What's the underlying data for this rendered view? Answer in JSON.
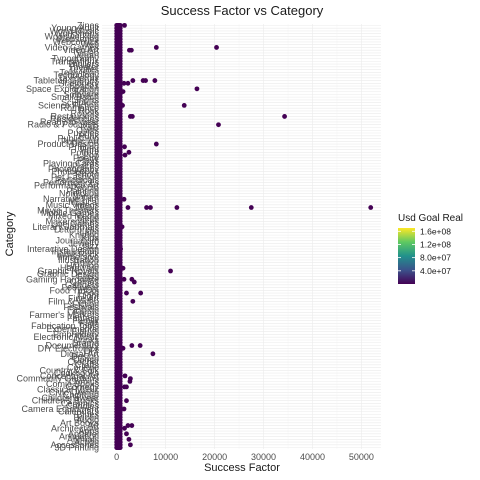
{
  "chart_data": {
    "type": "scatter",
    "title": "Success Factor vs Category",
    "xlabel": "Success Factor",
    "ylabel": "Category",
    "xlim": [
      -3000,
      54000
    ],
    "x_ticks": [
      0,
      10000,
      20000,
      30000,
      40000,
      50000
    ],
    "x_tick_labels": [
      "0",
      "10000",
      "20000",
      "30000",
      "40000",
      "50000"
    ],
    "grid": true,
    "legend_position": "right",
    "color_legend": {
      "title": "Usd Goal Real",
      "breaks": [
        "1.6e+08",
        "1.2e+08",
        "8.0e+07",
        "4.0e+07"
      ],
      "break_values": [
        160000000,
        120000000,
        80000000,
        40000000
      ],
      "range": [
        0,
        170000000
      ],
      "colors": [
        "#440154",
        "#3b528b",
        "#21918c",
        "#5ec962",
        "#fde725"
      ]
    },
    "point_color": "#440154",
    "categories": [
      "3D Printing",
      "Accessories",
      "Action",
      "Animals",
      "Animation",
      "Apparel",
      "Apps",
      "Architecture",
      "Art",
      "Art Books",
      "Audio",
      "Bacon",
      "Blues",
      "Calendars",
      "Camera Equipment",
      "Candles",
      "Ceramics",
      "Children's Books",
      "Childrenswear",
      "Chiptune",
      "Civic Design",
      "Classical Music",
      "Comedy",
      "Comic Books",
      "Comics",
      "Community Gardens",
      "Conceptual Art",
      "Cookbooks",
      "Country & Folk",
      "Couture",
      "Crafts",
      "Crochet",
      "Dance",
      "Design",
      "Digital Art",
      "DIY",
      "DIY Electronics",
      "Documentary",
      "Drama",
      "Drinks",
      "Electronic Music",
      "Embroidery",
      "Events",
      "Experimental",
      "Fabrication Tools",
      "Faith",
      "Family",
      "Fantasy",
      "Farmer's Markets",
      "Farms",
      "Fashion",
      "Festivals",
      "Fiction",
      "Film & Video",
      "Fine Art",
      "Flight",
      "Food",
      "Food Trucks",
      "Footwear",
      "Gadgets",
      "Games",
      "Gaming Hardware",
      "Glass",
      "Graphic Design",
      "Graphic Novels",
      "Hardware",
      "Hip-Hop",
      "Horror",
      "Illustration",
      "Immersive",
      "Indie Rock",
      "Installations",
      "Interactive Design",
      "Jazz",
      "Jewelry",
      "Journalism",
      "Kids",
      "Knitting",
      "Latin",
      "Letterpress",
      "Literary Journals",
      "Live Games",
      "Makerspaces",
      "Metal",
      "Mixed Media",
      "Mobile Games",
      "Movie Theaters",
      "Music",
      "Music Videos",
      "Musical",
      "Narrative Film",
      "Nature",
      "Nonfiction",
      "Painting",
      "People",
      "Performance Art",
      "Performances",
      "Periodicals",
      "Pet Fashion",
      "Photo",
      "Photobooks",
      "Photography",
      "Places",
      "Playing Cards",
      "Plays",
      "Poetry",
      "Pop",
      "Pottery",
      "Print",
      "Printing",
      "Product Design",
      "Public Art",
      "Publishing",
      "Punk",
      "Puzzles",
      "Quilts",
      "R&B",
      "Radio & Podcasts",
      "Ready-to-wear",
      "Residencies",
      "Restaurants",
      "Robots",
      "Rock",
      "Romance",
      "Science Fiction",
      "Sculpture",
      "Shorts",
      "Small Batch",
      "Software",
      "Sound",
      "Space Exploration",
      "Spaces",
      "Stationery",
      "Tabletop Games",
      "Taxidermy",
      "Technology",
      "Television",
      "Textiles",
      "Theater",
      "Thrillers",
      "Translations",
      "Typography",
      "Vegan",
      "Video",
      "Video Art",
      "Video Games",
      "Web",
      "Webcomics",
      "Webseries",
      "Woodworking",
      "Workshops",
      "World Music",
      "Young Adult",
      "Zines"
    ],
    "points": [
      {
        "category": "Zines",
        "x": 1600
      },
      {
        "category": "Video Art",
        "x": 2600
      },
      {
        "category": "Video Art",
        "x": 3000
      },
      {
        "category": "Video Games",
        "x": 8100
      },
      {
        "category": "Video Games",
        "x": 20400
      },
      {
        "category": "Tabletop Games",
        "x": 3300
      },
      {
        "category": "Tabletop Games",
        "x": 5400
      },
      {
        "category": "Tabletop Games",
        "x": 5900
      },
      {
        "category": "Tabletop Games",
        "x": 7800
      },
      {
        "category": "Stationery",
        "x": 1500
      },
      {
        "category": "Stationery",
        "x": 2300
      },
      {
        "category": "Space Exploration",
        "x": 16400
      },
      {
        "category": "Sound",
        "x": 1300
      },
      {
        "category": "Science Fiction",
        "x": 1200
      },
      {
        "category": "Science Fiction",
        "x": 13800
      },
      {
        "category": "Restaurants",
        "x": 2800
      },
      {
        "category": "Restaurants",
        "x": 3200
      },
      {
        "category": "Restaurants",
        "x": 34300
      },
      {
        "category": "Radio & Podcasts",
        "x": 20800
      },
      {
        "category": "Printing",
        "x": 1600
      },
      {
        "category": "Product Design",
        "x": 8100
      },
      {
        "category": "Pottery",
        "x": 2500
      },
      {
        "category": "Pop",
        "x": 1700
      },
      {
        "category": "Narrative Film",
        "x": 1500
      },
      {
        "category": "Music",
        "x": 2300
      },
      {
        "category": "Music",
        "x": 6100
      },
      {
        "category": "Music",
        "x": 6900
      },
      {
        "category": "Music",
        "x": 12300
      },
      {
        "category": "Music",
        "x": 27500
      },
      {
        "category": "Music",
        "x": 51900
      },
      {
        "category": "Literary Journals",
        "x": 1100
      },
      {
        "category": "Interactive Design",
        "x": 800
      },
      {
        "category": "Hardware",
        "x": 1300
      },
      {
        "category": "Graphic Novels",
        "x": 11000
      },
      {
        "category": "Gaming Hardware",
        "x": 1500
      },
      {
        "category": "Gaming Hardware",
        "x": 3100
      },
      {
        "category": "Games",
        "x": 3600
      },
      {
        "category": "Food",
        "x": 2000
      },
      {
        "category": "Food",
        "x": 4900
      },
      {
        "category": "Film & Video",
        "x": 3300
      },
      {
        "category": "Electronic Music",
        "x": 500
      },
      {
        "category": "DIY Electronics",
        "x": 1300
      },
      {
        "category": "Documentary",
        "x": 3100
      },
      {
        "category": "Documentary",
        "x": 4800
      },
      {
        "category": "Digital Art",
        "x": 7400
      },
      {
        "category": "Comics",
        "x": 2700
      },
      {
        "category": "Comedy",
        "x": 1600
      },
      {
        "category": "Comedy",
        "x": 2000
      },
      {
        "category": "Community Gardens",
        "x": 2800
      },
      {
        "category": "Conceptual Art",
        "x": 1700
      },
      {
        "category": "Children's Books",
        "x": 2000
      },
      {
        "category": "Camera Equipment",
        "x": 1500
      },
      {
        "category": "Art",
        "x": 2300
      },
      {
        "category": "Art",
        "x": 3100
      },
      {
        "category": "Apparel",
        "x": 2000
      },
      {
        "category": "Animals",
        "x": 2500
      },
      {
        "category": "Architecture",
        "x": 1600
      },
      {
        "category": "Accessories",
        "x": 2800
      }
    ]
  }
}
